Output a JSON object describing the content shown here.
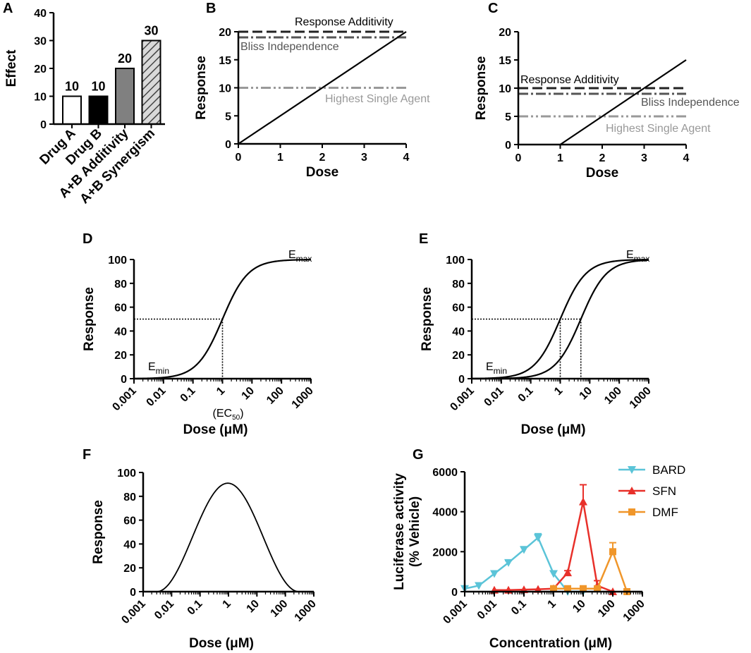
{
  "panels": {
    "A": {
      "letter": "A",
      "chart_type": "bar",
      "ylabel": "Effect",
      "ylim": [
        0,
        40
      ],
      "yticks": [
        "0",
        "10",
        "20",
        "30",
        "40"
      ],
      "categories": [
        "Drug A",
        "Drug B",
        "A+B Additivity",
        "A+B Synergism"
      ],
      "values": [
        10,
        10,
        20,
        30
      ],
      "value_labels": [
        "10",
        "10",
        "20",
        "30"
      ],
      "fills": [
        "white",
        "black",
        "gray",
        "hatched"
      ]
    },
    "B": {
      "letter": "B",
      "chart_type": "line",
      "xlabel": "Dose",
      "ylabel": "Response",
      "xlim": [
        0,
        4
      ],
      "ylim": [
        0,
        20
      ],
      "xticks": [
        "0",
        "1",
        "2",
        "3",
        "4"
      ],
      "yticks": [
        "0",
        "5",
        "10",
        "15",
        "20"
      ],
      "line": {
        "x": [
          0,
          4
        ],
        "y": [
          0,
          20
        ]
      },
      "reference_lines": [
        {
          "name": "Response Additivity",
          "y": 20
        },
        {
          "name": "Bliss Independence",
          "y": 19
        },
        {
          "name": "Highest Single Agent",
          "y": 10
        }
      ]
    },
    "C": {
      "letter": "C",
      "chart_type": "line",
      "xlabel": "Dose",
      "ylabel": "Response",
      "xlim": [
        0,
        4
      ],
      "ylim": [
        0,
        20
      ],
      "xticks": [
        "0",
        "1",
        "2",
        "3",
        "4"
      ],
      "yticks": [
        "0",
        "5",
        "10",
        "15",
        "20"
      ],
      "line": {
        "x": [
          1,
          4
        ],
        "y": [
          0,
          15
        ]
      },
      "reference_lines": [
        {
          "name": "Response Additivity",
          "y": 10
        },
        {
          "name": "Bliss Independence",
          "y": 9
        },
        {
          "name": "Highest Single Agent",
          "y": 5
        }
      ]
    },
    "D": {
      "letter": "D",
      "chart_type": "line",
      "xscale": "log",
      "xlabel": "Dose (μM)",
      "ylabel": "Response",
      "xlim": [
        0.001,
        1000
      ],
      "ylim": [
        0,
        100
      ],
      "xticks": [
        "0.001",
        "0.01",
        "0.1",
        "1",
        "10",
        "100",
        "1000"
      ],
      "yticks": [
        "0",
        "20",
        "40",
        "60",
        "80",
        "100"
      ],
      "curves": [
        {
          "ec50": 1,
          "hill": 1,
          "bottom": 0,
          "top": 100
        }
      ],
      "ec50_markers": [
        1
      ],
      "emin_label": "E",
      "emin_sub": "min",
      "emax_label": "E",
      "emax_sub": "max",
      "ec50_label_pre": "(EC",
      "ec50_label_sub": "50",
      "ec50_label_post": ")"
    },
    "E": {
      "letter": "E",
      "chart_type": "line",
      "xscale": "log",
      "xlabel": "Dose (μM)",
      "ylabel": "Response",
      "xlim": [
        0.001,
        1000
      ],
      "ylim": [
        0,
        100
      ],
      "xticks": [
        "0.001",
        "0.01",
        "0.1",
        "1",
        "10",
        "100",
        "1000"
      ],
      "yticks": [
        "0",
        "20",
        "40",
        "60",
        "80",
        "100"
      ],
      "curves": [
        {
          "ec50": 1,
          "hill": 1,
          "bottom": 0,
          "top": 100
        },
        {
          "ec50": 5,
          "hill": 1,
          "bottom": 0,
          "top": 100
        }
      ],
      "ec50_markers": [
        1,
        5
      ],
      "emin_label": "E",
      "emin_sub": "min",
      "emax_label": "E",
      "emax_sub": "max"
    },
    "F": {
      "letter": "F",
      "chart_type": "line",
      "xscale": "log",
      "xlabel": "Dose (μM)",
      "ylabel": "Response",
      "xlim": [
        0.001,
        1000
      ],
      "ylim": [
        0,
        100
      ],
      "xticks": [
        "0.001",
        "0.01",
        "0.1",
        "1",
        "10",
        "100",
        "1000"
      ],
      "yticks": [
        "0",
        "20",
        "40",
        "60",
        "80",
        "100"
      ],
      "curve": {
        "type": "bell",
        "peak_x": 1,
        "peak_y": 91,
        "zero_at": [
          0.003,
          300
        ]
      }
    },
    "G": {
      "letter": "G",
      "chart_type": "line",
      "xscale": "log",
      "xlabel": "Concentration (μM)",
      "ylabel_line1": "Luciferase activity",
      "ylabel_line2": "(% Vehicle)",
      "xlim": [
        0.001,
        1000
      ],
      "ylim": [
        0,
        6000
      ],
      "xticks": [
        "0.001",
        "0.01",
        "0.1",
        "1",
        "10",
        "100",
        "1000"
      ],
      "yticks": [
        "0",
        "2000",
        "4000",
        "6000"
      ],
      "series": [
        {
          "name": "BARD",
          "color": "#5bc4d8",
          "marker": "triangle-down",
          "x": [
            0.001,
            0.003,
            0.01,
            0.03,
            0.1,
            0.3,
            1,
            3,
            10
          ],
          "y": [
            150,
            300,
            900,
            1450,
            2100,
            2700,
            900,
            0,
            0
          ],
          "err": [
            0,
            0,
            0,
            100,
            150,
            200,
            0,
            0,
            0
          ]
        },
        {
          "name": "SFN",
          "color": "#e8302a",
          "marker": "triangle-up",
          "x": [
            0.01,
            0.03,
            0.1,
            0.3,
            1,
            3,
            10,
            30,
            100
          ],
          "y": [
            80,
            80,
            100,
            120,
            150,
            950,
            4500,
            300,
            0
          ],
          "err": [
            0,
            0,
            0,
            0,
            0,
            100,
            850,
            250,
            0
          ]
        },
        {
          "name": "DMF",
          "color": "#f0962a",
          "marker": "square",
          "x": [
            1,
            3,
            10,
            30,
            100,
            300
          ],
          "y": [
            150,
            150,
            150,
            150,
            2000,
            0
          ],
          "err": [
            0,
            0,
            0,
            0,
            450,
            0
          ]
        }
      ]
    }
  }
}
